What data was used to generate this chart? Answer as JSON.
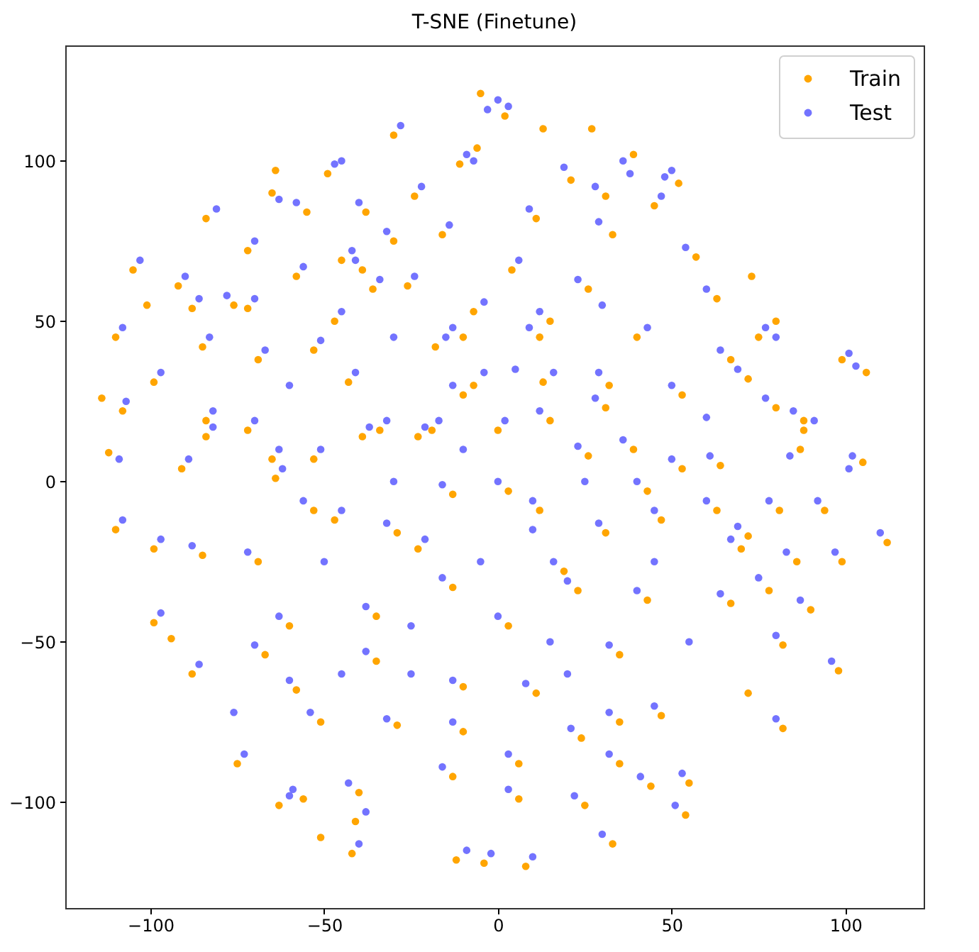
{
  "chart_data": {
    "type": "scatter",
    "title": "T-SNE (Finetune)",
    "xlim": [
      -124.5,
      122.5
    ],
    "ylim": [
      -133,
      136
    ],
    "xticks": [
      -100,
      -50,
      0,
      50,
      100
    ],
    "yticks": [
      -100,
      -50,
      0,
      50,
      100
    ],
    "legend": "top right",
    "marker": "circle",
    "series": [
      {
        "name": "Train",
        "color": "#ffa500",
        "x": [
          2,
          -5,
          -11,
          -6,
          -30,
          -49,
          21,
          31,
          39,
          52,
          45,
          11,
          33,
          57,
          63,
          80,
          75,
          106,
          99,
          105,
          88,
          67,
          40,
          26,
          4,
          12,
          32,
          53,
          80,
          0,
          26,
          53,
          87,
          13,
          -105,
          -110,
          -108,
          -112,
          -92,
          -88,
          -76,
          -84,
          -72,
          -65,
          -55,
          -58,
          -38,
          -45,
          -30,
          -24,
          -16,
          -72,
          -69,
          -85,
          -99,
          -84,
          -91,
          -72,
          -65,
          -53,
          -43,
          -39,
          -36,
          -26,
          -18,
          -34,
          -19,
          -53,
          -7,
          -7,
          -47,
          3,
          -23,
          31,
          -47,
          47,
          -23,
          23,
          72,
          88,
          -64,
          -84,
          -10,
          15,
          15,
          -10,
          -39,
          39,
          64,
          72,
          -110,
          -99,
          -99,
          -88,
          -75,
          -63,
          -41,
          -42,
          -12,
          -4,
          8,
          6,
          25,
          33,
          54,
          55,
          44,
          35,
          82,
          90,
          98,
          112,
          99,
          94,
          70,
          78,
          82,
          67,
          43,
          35,
          47,
          35,
          24,
          11,
          6,
          -10,
          -10,
          -13,
          -29,
          -40,
          -56,
          -51,
          -58,
          -67,
          -60,
          -69,
          -85,
          -35,
          -35,
          -13,
          3,
          19,
          31,
          12,
          -29,
          -53,
          63,
          81,
          86,
          43,
          -13,
          73,
          13,
          27,
          -64,
          -101,
          -114,
          -94,
          -51,
          72
        ],
        "values": [
          114,
          121,
          99,
          104,
          108,
          96,
          94,
          89,
          102,
          93,
          86,
          82,
          77,
          70,
          57,
          50,
          45,
          34,
          38,
          6,
          16,
          38,
          45,
          60,
          66,
          45,
          30,
          27,
          23,
          16,
          8,
          4,
          10,
          31,
          66,
          45,
          22,
          9,
          61,
          54,
          55,
          82,
          72,
          90,
          84,
          64,
          84,
          69,
          75,
          89,
          77,
          54,
          38,
          42,
          31,
          19,
          4,
          16,
          7,
          41,
          31,
          66,
          60,
          61,
          42,
          16,
          16,
          7,
          30,
          53,
          50,
          -3,
          14,
          23,
          -12,
          -12,
          -21,
          -34,
          -17,
          19,
          1,
          14,
          45,
          50,
          19,
          27,
          14,
          10,
          5,
          32,
          -15,
          -21,
          -44,
          -60,
          -88,
          -101,
          -106,
          -116,
          -118,
          -119,
          -120,
          -99,
          -101,
          -113,
          -104,
          -94,
          -95,
          -88,
          -77,
          -40,
          -59,
          -19,
          -25,
          -9,
          -21,
          -34,
          -51,
          -38,
          -37,
          -54,
          -73,
          -75,
          -80,
          -66,
          -88,
          -64,
          -78,
          -92,
          -76,
          -97,
          -99,
          -75,
          -65,
          -54,
          -45,
          -25,
          -23,
          -42,
          -56,
          -33,
          -45,
          -28,
          -16,
          -9,
          -16,
          -9,
          -9,
          -9,
          -25,
          -3,
          -4,
          64,
          110,
          110,
          97,
          55,
          26,
          -49,
          -111,
          -66
        ]
      },
      {
        "name": "Test",
        "color": "#0000ff",
        "x": [
          0,
          3,
          -3,
          -9,
          -7,
          -28,
          -47,
          -45,
          19,
          28,
          36,
          38,
          48,
          50,
          47,
          9,
          29,
          54,
          60,
          77,
          80,
          103,
          101,
          102,
          91,
          64,
          43,
          23,
          6,
          9,
          29,
          50,
          77,
          2,
          23,
          50,
          84,
          16,
          -103,
          -108,
          -107,
          -109,
          -90,
          -86,
          -78,
          -81,
          -70,
          -63,
          -58,
          -56,
          -40,
          -42,
          -32,
          -22,
          -14,
          -70,
          -67,
          -83,
          -97,
          -82,
          -89,
          -70,
          -63,
          -51,
          -41,
          -41,
          -34,
          -24,
          -15,
          -32,
          -17,
          -51,
          -4,
          -4,
          -45,
          0,
          -21,
          28,
          -45,
          45,
          -21,
          20,
          69,
          85,
          -62,
          -82,
          -13,
          12,
          12,
          -13,
          -37,
          36,
          61,
          69,
          101,
          -108,
          -97,
          -97,
          -86,
          -73,
          -60,
          -38,
          -40,
          -9,
          -2,
          10,
          3,
          22,
          30,
          51,
          53,
          41,
          32,
          80,
          87,
          96,
          110,
          97,
          92,
          67,
          75,
          80,
          64,
          40,
          32,
          45,
          32,
          21,
          8,
          3,
          -13,
          -13,
          -16,
          -32,
          -43,
          -59,
          -54,
          -60,
          -70,
          -63,
          -72,
          -88,
          -38,
          -38,
          -16,
          0,
          16,
          29,
          10,
          -32,
          -56,
          60,
          78,
          83,
          40,
          -16,
          -76,
          -10,
          10,
          -30,
          25,
          -5,
          -25,
          15,
          55,
          -50,
          60,
          -30,
          30,
          -60,
          45,
          -45,
          5,
          -25,
          20
        ],
        "values": [
          119,
          117,
          116,
          102,
          100,
          111,
          99,
          100,
          98,
          92,
          100,
          96,
          95,
          97,
          89,
          85,
          81,
          73,
          60,
          48,
          45,
          36,
          40,
          8,
          19,
          41,
          48,
          63,
          69,
          48,
          34,
          30,
          26,
          19,
          11,
          7,
          8,
          34,
          69,
          48,
          25,
          7,
          64,
          57,
          58,
          85,
          75,
          88,
          87,
          67,
          87,
          72,
          78,
          92,
          80,
          57,
          41,
          45,
          34,
          22,
          7,
          19,
          10,
          44,
          34,
          69,
          63,
          64,
          45,
          19,
          19,
          10,
          34,
          56,
          53,
          0,
          17,
          26,
          -9,
          -9,
          -18,
          -31,
          -14,
          22,
          4,
          17,
          48,
          53,
          22,
          30,
          17,
          13,
          8,
          35,
          4,
          -12,
          -18,
          -41,
          -57,
          -85,
          -98,
          -103,
          -113,
          -115,
          -116,
          -117,
          -96,
          -98,
          -110,
          -101,
          -91,
          -92,
          -85,
          -74,
          -37,
          -56,
          -16,
          -22,
          -6,
          -18,
          -30,
          -48,
          -35,
          -34,
          -51,
          -70,
          -72,
          -77,
          -63,
          -85,
          -62,
          -75,
          -89,
          -74,
          -94,
          -96,
          -72,
          -62,
          -51,
          -42,
          -22,
          -20,
          -39,
          -53,
          -30,
          -42,
          -25,
          -13,
          -6,
          -13,
          -6,
          -6,
          -6,
          -22,
          0,
          -1,
          -72,
          10,
          -15,
          0,
          0,
          -25,
          -45,
          -50,
          -50,
          -25,
          20,
          45,
          55,
          30,
          -25,
          -60,
          35,
          -60,
          -60
        ]
      }
    ]
  }
}
